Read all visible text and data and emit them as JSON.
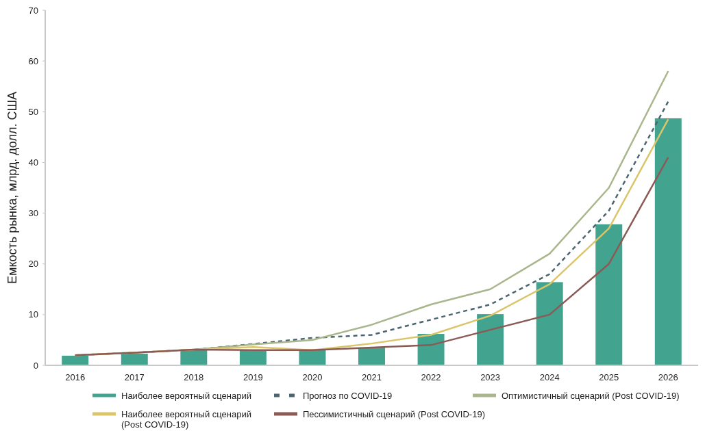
{
  "chart_data": {
    "type": "bar",
    "ylabel": "Емкость рынка, млрд. долл. США",
    "categories": [
      "2016",
      "2017",
      "2018",
      "2019",
      "2020",
      "2021",
      "2022",
      "2023",
      "2024",
      "2025",
      "2026"
    ],
    "ylim": [
      0,
      70
    ],
    "yticks": [
      0,
      10,
      20,
      30,
      40,
      50,
      60,
      70
    ],
    "legend": "bottom",
    "series": [
      {
        "name": "Наиболее вероятный сценарий",
        "color": "#42a38f",
        "values": [
          1.9,
          2.3,
          3.1,
          3.1,
          3.1,
          3.5,
          6.2,
          10.1,
          16.4,
          27.8,
          48.7
        ]
      },
      {
        "name": "Прогноз по COVID-19",
        "type": "line",
        "line_style": "dashed",
        "color": "#4a6470",
        "values": [
          2,
          2.5,
          3.1,
          4.2,
          5.4,
          6,
          9,
          12,
          18,
          30.5,
          52
        ]
      },
      {
        "name": "Оптимистичный сценарий (Post COVID-19)",
        "type": "line",
        "line_style": "solid",
        "color": "#a9b68c",
        "values": [
          2,
          2.5,
          3.1,
          4.1,
          5,
          8,
          12,
          15,
          22,
          35,
          58
        ]
      },
      {
        "name": "Наиболее вероятный сценарий (Post COVID-19)",
        "type": "line",
        "line_style": "solid",
        "color": "#dbc56a",
        "values": [
          2,
          2.5,
          3.1,
          3.6,
          3,
          4.3,
          6,
          9.8,
          16,
          27,
          48.5
        ]
      },
      {
        "name": "Пессимистичный сценарий (Post COVID-19)",
        "type": "line",
        "line_style": "solid",
        "color": "#8b5a55",
        "values": [
          2,
          2.5,
          3.1,
          3,
          3,
          3.5,
          4,
          7,
          10,
          20,
          41
        ]
      }
    ]
  }
}
